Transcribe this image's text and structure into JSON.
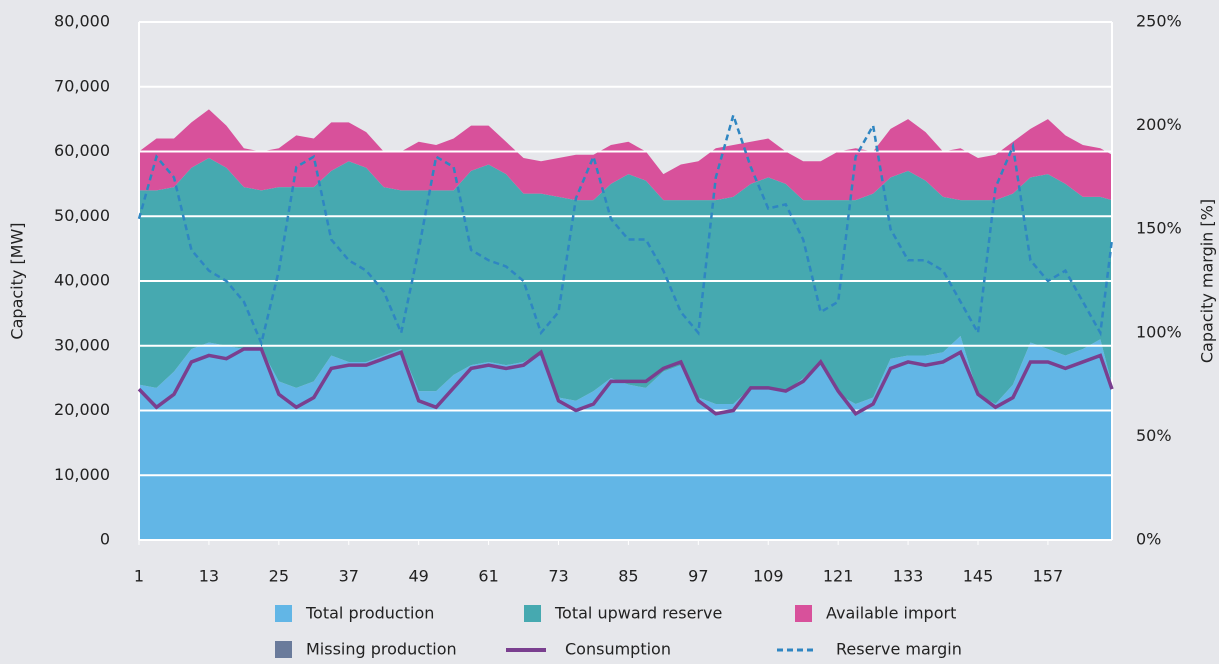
{
  "chart_data": {
    "type": "stacked-area-line",
    "x": [
      1,
      4,
      7,
      10,
      13,
      16,
      19,
      22,
      25,
      28,
      31,
      34,
      37,
      40,
      43,
      46,
      49,
      52,
      55,
      58,
      61,
      64,
      67,
      70,
      73,
      76,
      79,
      82,
      85,
      88,
      91,
      94,
      97,
      100,
      103,
      106,
      109,
      112,
      115,
      118,
      121,
      124,
      127,
      130,
      133,
      136,
      139,
      142,
      145,
      148,
      151,
      154,
      157,
      160,
      163,
      166,
      168
    ],
    "xlim": [
      1,
      168
    ],
    "xticks": [
      1,
      13,
      25,
      37,
      49,
      61,
      73,
      85,
      97,
      109,
      121,
      133,
      145,
      157
    ],
    "ylim": [
      0,
      80000
    ],
    "yticks": [
      {
        "value": 0,
        "label": "0"
      },
      {
        "value": 10000,
        "label": "10,000"
      },
      {
        "value": 20000,
        "label": "20,000"
      },
      {
        "value": 30000,
        "label": "30,000"
      },
      {
        "value": 40000,
        "label": "40,000"
      },
      {
        "value": 50000,
        "label": "50,000"
      },
      {
        "value": 60000,
        "label": "60,000"
      },
      {
        "value": 70000,
        "label": "70,000"
      },
      {
        "value": 80000,
        "label": "80,000"
      }
    ],
    "y2lim": [
      0,
      250
    ],
    "y2ticks": [
      {
        "value": 0,
        "label": "0%"
      },
      {
        "value": 50,
        "label": "50%"
      },
      {
        "value": 100,
        "label": "100%"
      },
      {
        "value": 150,
        "label": "150%"
      },
      {
        "value": 200,
        "label": "200%"
      },
      {
        "value": 250,
        "label": "250%"
      }
    ],
    "ylabel": "Capacity [MW]",
    "y2label": "Capacity margin [%]",
    "grid": true,
    "series": [
      {
        "name": "Total production",
        "style": "area",
        "color": "#62b6e6",
        "values": [
          24000,
          23500,
          26000,
          29500,
          30500,
          30000,
          29500,
          29500,
          24500,
          23500,
          24500,
          28500,
          27500,
          27500,
          28500,
          29500,
          23000,
          23000,
          25500,
          27000,
          27500,
          27000,
          27500,
          29000,
          22000,
          21500,
          23000,
          25000,
          24000,
          23500,
          26000,
          27000,
          22000,
          21000,
          21000,
          23500,
          23500,
          23000,
          25000,
          27500,
          22500,
          21000,
          22000,
          28000,
          28500,
          28500,
          29000,
          31500,
          22500,
          21000,
          24000,
          30500,
          29500,
          28500,
          29500,
          31000,
          24000
        ]
      },
      {
        "name": "Total upward reserve",
        "style": "area",
        "color": "#46a9b0",
        "values": [
          30000,
          30500,
          28500,
          28000,
          28500,
          27500,
          25000,
          24500,
          30000,
          31000,
          30000,
          28500,
          31000,
          30000,
          26000,
          24500,
          31000,
          31000,
          28500,
          30000,
          30500,
          29500,
          26000,
          24500,
          31000,
          31000,
          29500,
          30000,
          32500,
          32000,
          26500,
          25500,
          30500,
          31500,
          32000,
          31500,
          32500,
          32000,
          27500,
          25000,
          30000,
          31500,
          31500,
          28000,
          28500,
          27000,
          24000,
          21000,
          30000,
          31500,
          29500,
          25500,
          27000,
          26500,
          23500,
          22000,
          28500
        ]
      },
      {
        "name": "Available import",
        "style": "area",
        "color": "#d8519b",
        "values": [
          6000,
          8000,
          7500,
          7000,
          7500,
          6500,
          6000,
          6000,
          6000,
          8000,
          7500,
          7500,
          6000,
          5500,
          5500,
          6000,
          7500,
          7000,
          8000,
          7000,
          6000,
          5000,
          5500,
          5000,
          6000,
          7000,
          7000,
          6000,
          5000,
          4500,
          4000,
          5500,
          6000,
          8000,
          8000,
          6500,
          6000,
          5000,
          6000,
          6000,
          7500,
          8000,
          6500,
          7500,
          8000,
          7500,
          7000,
          8000,
          6500,
          7000,
          8000,
          7500,
          8500,
          7500,
          8000,
          7500,
          7000
        ]
      },
      {
        "name": "Missing production",
        "style": "area",
        "color": "#6a7b9b",
        "values": [
          0,
          0,
          0,
          0,
          0,
          0,
          0,
          0,
          0,
          0,
          0,
          0,
          0,
          0,
          0,
          0,
          0,
          0,
          0,
          0,
          0,
          0,
          0,
          0,
          0,
          0,
          0,
          0,
          0,
          0,
          0,
          0,
          0,
          0,
          0,
          0,
          0,
          0,
          0,
          0,
          0,
          0,
          0,
          0,
          0,
          0,
          0,
          0,
          0,
          0,
          0,
          0,
          0,
          0,
          0,
          0,
          0
        ]
      },
      {
        "name": "Consumption",
        "style": "line",
        "color": "#7a3f8f",
        "values": [
          23300,
          20500,
          22500,
          27500,
          28500,
          28000,
          29500,
          29500,
          22500,
          20500,
          22000,
          26500,
          27000,
          27000,
          28000,
          29000,
          21500,
          20500,
          23500,
          26500,
          27000,
          26500,
          27000,
          29000,
          21500,
          20000,
          21000,
          24500,
          24500,
          24500,
          26500,
          27500,
          21500,
          19500,
          20000,
          23500,
          23500,
          23000,
          24500,
          27500,
          23000,
          19500,
          21000,
          26500,
          27500,
          27000,
          27500,
          29000,
          22500,
          20500,
          22000,
          27500,
          27500,
          26500,
          27500,
          28500,
          23300
        ]
      },
      {
        "name": "Reserve margin",
        "style": "dashed",
        "axis": "y2",
        "color": "#2f86c2",
        "values": [
          155,
          185,
          175,
          140,
          130,
          125,
          115,
          95,
          130,
          180,
          185,
          145,
          135,
          130,
          120,
          100,
          140,
          185,
          180,
          140,
          135,
          132,
          125,
          100,
          110,
          165,
          185,
          155,
          145,
          145,
          130,
          110,
          100,
          175,
          205,
          180,
          160,
          162,
          145,
          110,
          115,
          185,
          200,
          150,
          135,
          135,
          130,
          115,
          100,
          170,
          190,
          135,
          125,
          130,
          115,
          100,
          145
        ]
      }
    ]
  }
}
